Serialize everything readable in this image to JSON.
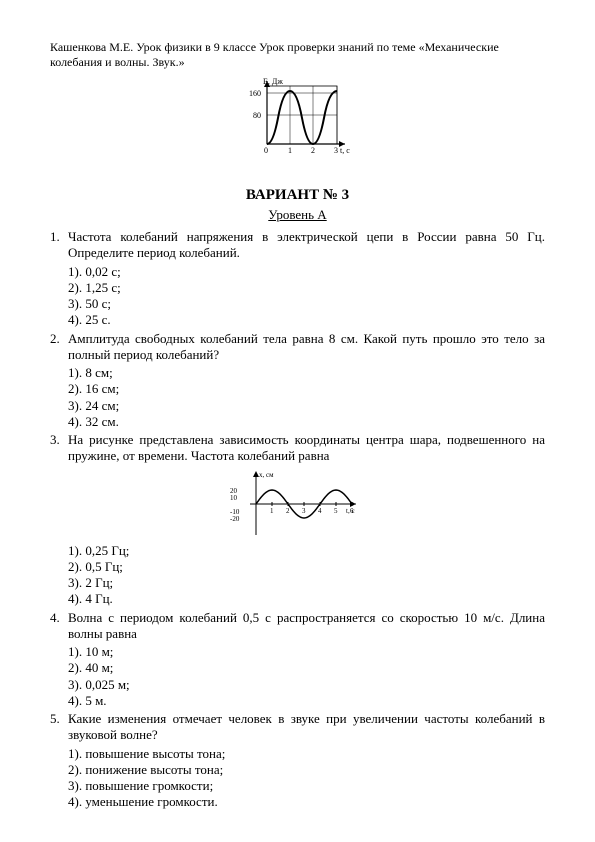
{
  "header": "Кашенкова М.Е. Урок физики в 9 классе Урок проверки знаний по теме «Механические колебания и волны. Звук.»",
  "chart1": {
    "ylabel": "E, Дж",
    "xlabel": "t, с",
    "yticks": [
      "80",
      "160"
    ],
    "xticks": [
      "0",
      "1",
      "2",
      "3"
    ],
    "width": 105,
    "height": 80,
    "stroke": "#000",
    "fill": "#fff"
  },
  "variant": "ВАРИАНТ № 3",
  "level": "Уровень А",
  "questions": [
    {
      "num": "1.",
      "text": "Частота колебаний напряжения в электрической цепи в России равна 50 Гц. Определите период колебаний.",
      "opts": [
        "1). 0,02 с;",
        "2). 1,25 с;",
        "3). 50 с;",
        "4). 25 с."
      ]
    },
    {
      "num": "2.",
      "text": "Амплитуда свободных колебаний тела равна 8 см. Какой путь прошло это тело за полный период колебаний?",
      "opts": [
        "1). 8 см;",
        "2). 16 см;",
        "3). 24 см;",
        "4). 32 см."
      ]
    },
    {
      "num": "3.",
      "text": "На рисунке представлена зависимость координаты центра шара, подвешенного на пружине, от времени. Частота колебаний равна",
      "chart": {
        "ylabel": "x, см",
        "xlabel": "t, с",
        "yticks": [
          "-20",
          "-10",
          "10",
          "20"
        ],
        "xticks": [
          "1",
          "2",
          "3",
          "4",
          "5",
          "6"
        ],
        "width": 140,
        "height": 70,
        "stroke": "#000"
      },
      "opts": [
        "1). 0,25 Гц;",
        "2). 0,5 Гц;",
        "3). 2 Гц;",
        "4). 4 Гц."
      ]
    },
    {
      "num": "4.",
      "text": "Волна с периодом колебаний 0,5 с распространяется со скоростью 10 м/с. Длина волны равна",
      "opts": [
        "1). 10 м;",
        "2). 40 м;",
        "3). 0,025 м;",
        "4). 5 м."
      ]
    },
    {
      "num": "5.",
      "text": "Какие изменения отмечает человек в звуке при увеличении частоты колебаний в звуковой волне?",
      "opts": [
        "1). повышение высоты тона;",
        "2). понижение высоты тона;",
        "3). повышение громкости;",
        "4). уменьшение громкости."
      ]
    }
  ]
}
